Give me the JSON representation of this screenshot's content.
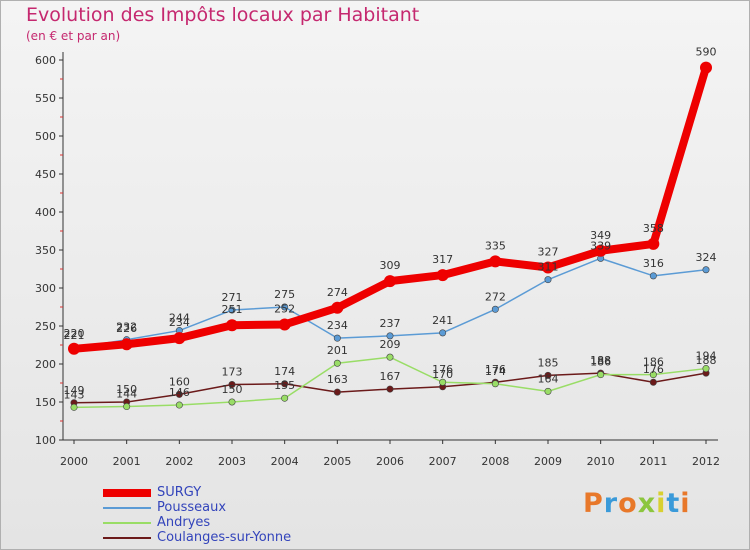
{
  "header": {
    "title": "Evolution des Impôts locaux par Habitant",
    "subtitle": "(en € et par an)"
  },
  "logo": {
    "text": "Proxiti",
    "colors": [
      "#e8782a",
      "#3a9ad9",
      "#e8782a",
      "#8cc63e",
      "#d9d030",
      "#3a9ad9",
      "#e8782a"
    ]
  },
  "chart_data": {
    "type": "line",
    "title": "Evolution des Impôts locaux par Habitant",
    "subtitle": "(en € et par an)",
    "x": [
      2000,
      2001,
      2002,
      2003,
      2004,
      2005,
      2006,
      2007,
      2008,
      2009,
      2010,
      2011,
      2012
    ],
    "ylim": [
      100,
      600
    ],
    "yticks": [
      100,
      150,
      200,
      250,
      300,
      350,
      400,
      450,
      500,
      550,
      600
    ],
    "grid": false,
    "legend_position": "bottom-left",
    "series": [
      {
        "name": "SURGY",
        "color": "#ee0000",
        "width": 8,
        "values": [
          220,
          226,
          234,
          251,
          252,
          274,
          309,
          317,
          335,
          327,
          349,
          358,
          590
        ],
        "labels": [
          "220",
          "226",
          "234",
          "251",
          "252",
          "274",
          "309",
          "317",
          "335",
          "327",
          "349",
          "358",
          "590"
        ]
      },
      {
        "name": "Pousseaux",
        "color": "#5b9bd5",
        "width": 1.5,
        "values": [
          221,
          232,
          244,
          271,
          275,
          234,
          237,
          241,
          272,
          311,
          339,
          316,
          324
        ],
        "labels": [
          "221",
          "232",
          "244",
          "271",
          "275",
          "234",
          "237",
          "241",
          "272",
          "311",
          "339",
          "316",
          "324"
        ]
      },
      {
        "name": "Andryes",
        "color": "#99dd66",
        "width": 1.5,
        "values": [
          143,
          144,
          146,
          150,
          155,
          201,
          209,
          176,
          174,
          164,
          186,
          186,
          194
        ],
        "labels": [
          "143",
          "144",
          "146",
          "150",
          "155",
          "201",
          "209",
          "176",
          "174",
          "164",
          "186",
          "186",
          "194"
        ]
      },
      {
        "name": "Coulanges-sur-Yonne",
        "color": "#6b1a1a",
        "width": 1.5,
        "values": [
          149,
          150,
          160,
          173,
          174,
          163,
          167,
          170,
          176,
          185,
          188,
          176,
          188
        ],
        "labels": [
          "149",
          "150",
          "160",
          "173",
          "174",
          "163",
          "167",
          "170",
          "176",
          "185",
          "188",
          "176",
          "188"
        ]
      }
    ]
  }
}
